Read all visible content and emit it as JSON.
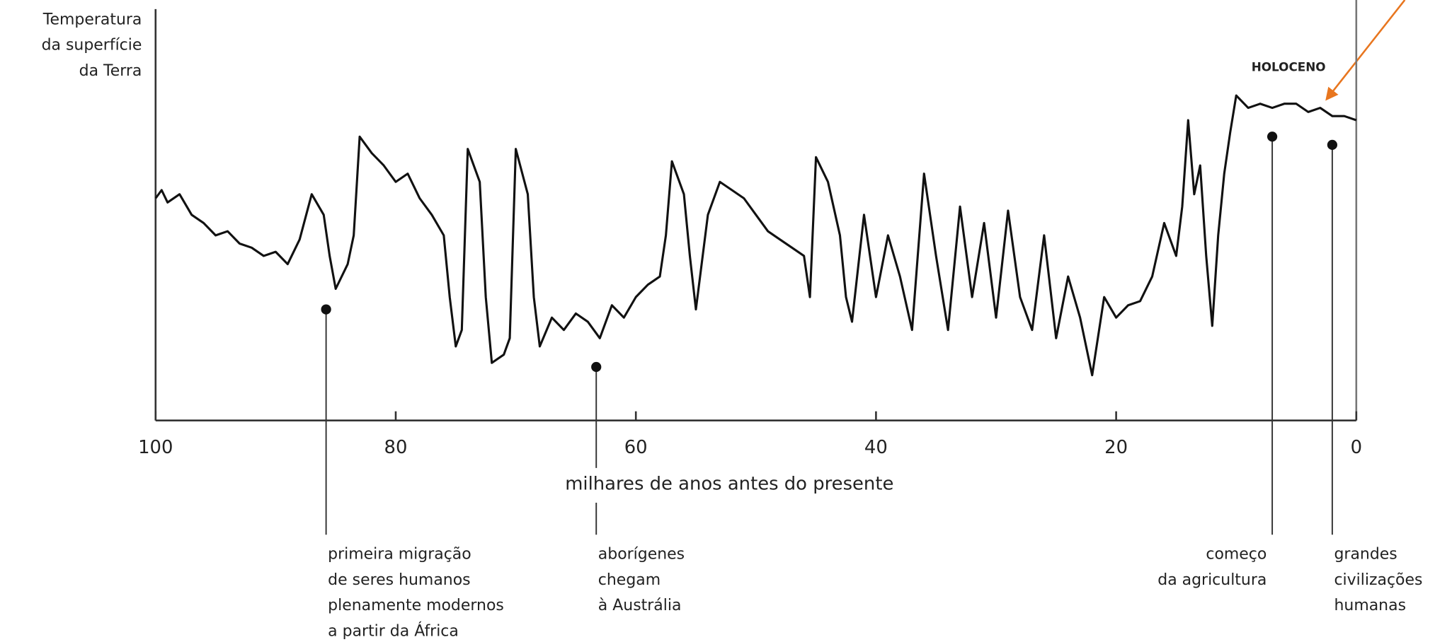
{
  "chart_data": {
    "type": "line",
    "y_label_lines": [
      "Temperatura",
      "da superfície",
      "da Terra"
    ],
    "x_label": "milhares de anos antes do presente",
    "period_label": "HOLOCENO",
    "xlim": [
      100,
      0
    ],
    "ylim": [
      0,
      100
    ],
    "xticks": [
      100,
      80,
      60,
      40,
      20,
      0
    ],
    "x": [
      100,
      99.5,
      99,
      98,
      97,
      96,
      95,
      94,
      93,
      92,
      91,
      90,
      89,
      88,
      87,
      86,
      85.5,
      85,
      84,
      83.5,
      83,
      82,
      81,
      80,
      79,
      78,
      77,
      76,
      75.5,
      75,
      74.5,
      74,
      73,
      72.5,
      72,
      71,
      70.5,
      70,
      69,
      68.5,
      68,
      67,
      66,
      65,
      64,
      63,
      62,
      61,
      60,
      59,
      58,
      57.5,
      57,
      56,
      55.5,
      55,
      54,
      53,
      52,
      51,
      50,
      49,
      48,
      47,
      46,
      45.5,
      45,
      44,
      43,
      42.5,
      42,
      41,
      40,
      39,
      38,
      37,
      36,
      35,
      34,
      33,
      32,
      31,
      30,
      29,
      28,
      27,
      26,
      25,
      24,
      23,
      22,
      21,
      20,
      19,
      18,
      17,
      16,
      15,
      14.5,
      14,
      13.5,
      13,
      12.5,
      12,
      11.5,
      11,
      10.5,
      10,
      9,
      8,
      7,
      6,
      5,
      4,
      3,
      2,
      1,
      0
    ],
    "series": [
      {
        "color": "#111111",
        "values": [
          54,
          56,
          53,
          55,
          50,
          48,
          45,
          46,
          43,
          42,
          40,
          41,
          38,
          44,
          55,
          50,
          40,
          32,
          38,
          45,
          69,
          65,
          62,
          58,
          60,
          54,
          50,
          45,
          30,
          18,
          22,
          66,
          58,
          30,
          14,
          16,
          20,
          66,
          55,
          30,
          18,
          25,
          22,
          26,
          24,
          20,
          28,
          25,
          30,
          33,
          35,
          45,
          63,
          55,
          40,
          27,
          50,
          58,
          56,
          54,
          50,
          46,
          44,
          42,
          40,
          30,
          64,
          58,
          45,
          30,
          24,
          50,
          30,
          45,
          35,
          22,
          60,
          40,
          22,
          52,
          30,
          48,
          25,
          51,
          30,
          22,
          45,
          20,
          35,
          25,
          11,
          30,
          25,
          28,
          29,
          35,
          48,
          40,
          52,
          73,
          55,
          62,
          40,
          23,
          45,
          60,
          70,
          79,
          76,
          77,
          76,
          77,
          77,
          75,
          76,
          74,
          74,
          73
        ]
      }
    ],
    "annotations": [
      {
        "x": 85.8,
        "y": 27,
        "lines": [
          "primeira migração",
          "de seres humanos",
          "plenamente modernos",
          "a partir da África"
        ]
      },
      {
        "x": 63.3,
        "y": 13,
        "lines": [
          "aborígenes",
          "chegam",
          "à Austrália"
        ]
      },
      {
        "x": 7,
        "y": 69,
        "lines": [
          "começo",
          "da agricultura"
        ]
      },
      {
        "x": 2,
        "y": 67,
        "lines": [
          "grandes",
          "civilizações",
          "humanas"
        ]
      }
    ]
  }
}
